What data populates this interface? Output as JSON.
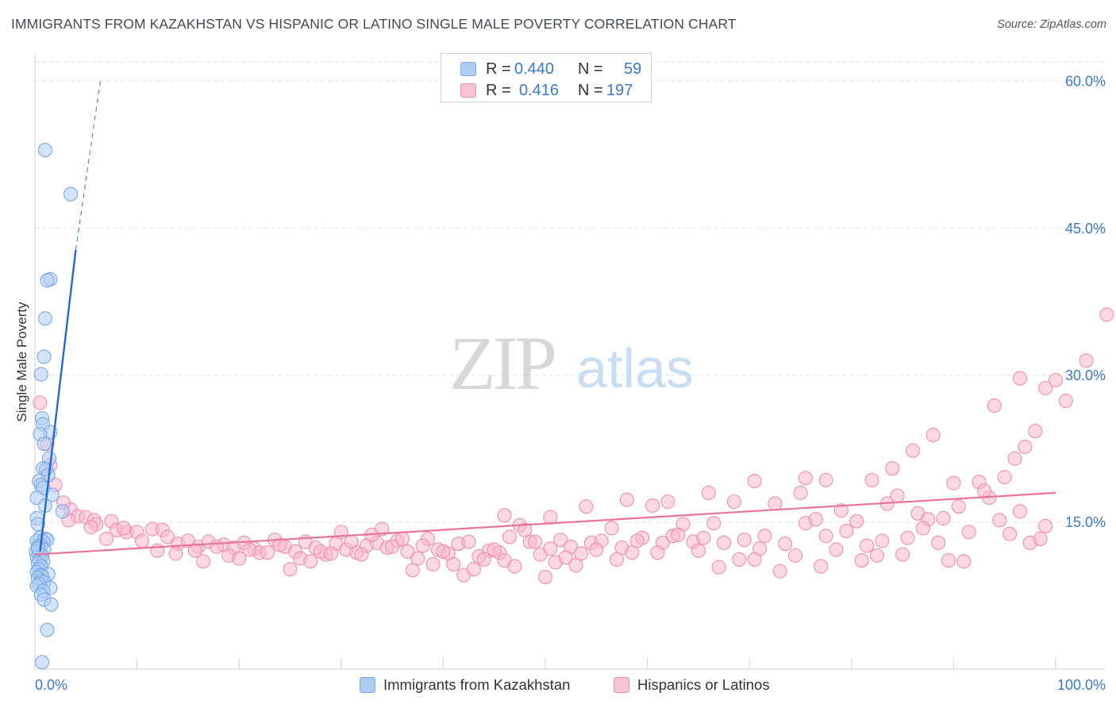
{
  "title": "IMMIGRANTS FROM KAZAKHSTAN VS HISPANIC OR LATINO SINGLE MALE POVERTY CORRELATION CHART",
  "source": "Source: ZipAtlas.com",
  "watermark": {
    "zip": "ZIP",
    "atlas": "atlas"
  },
  "colors": {
    "blue_fill": "#aecdf5",
    "blue_stroke": "#7aa8e0",
    "blue_line": "#2468d0",
    "pink_fill": "#f7b8cc",
    "pink_stroke": "#ee8fb0",
    "pink_line": "#e8739c",
    "axis_label": "#3a78c9",
    "grid": "#e2e2e2"
  },
  "legend_top": {
    "rows": [
      {
        "r_label": "R =",
        "r_value": "0.440",
        "n_label": "N =",
        "n_value": "59"
      },
      {
        "r_label": "R =",
        "r_value": "0.416",
        "n_label": "N =",
        "n_value": "197"
      }
    ]
  },
  "chart_data": {
    "type": "scatter",
    "title": "IMMIGRANTS FROM KAZAKHSTAN VS HISPANIC OR LATINO SINGLE MALE POVERTY CORRELATION CHART",
    "xlabel": "",
    "ylabel": "Single Male Poverty",
    "xlim": [
      0,
      100
    ],
    "ylim": [
      0,
      62
    ],
    "x_tick_labels": [
      "0.0%",
      "100.0%"
    ],
    "y_ticks": [
      15,
      30,
      45,
      60
    ],
    "y_tick_labels": [
      "15.0%",
      "30.0%",
      "45.0%",
      "60.0%"
    ],
    "legend_position": "bottom-center",
    "series": [
      {
        "name": "Immigrants from Kazakhstan",
        "color": "blue",
        "r": 0.44,
        "n": 59,
        "trend": {
          "x0": 0.5,
          "y0": 12.0,
          "x1": 4.0,
          "y1": 42.8,
          "dash_x1": 6.4,
          "dash_y1": 60.0
        },
        "points": [
          [
            1.0,
            53.0
          ],
          [
            3.5,
            48.5
          ],
          [
            1.5,
            39.8
          ],
          [
            1.2,
            39.7
          ],
          [
            1.0,
            35.8
          ],
          [
            0.9,
            31.9
          ],
          [
            0.6,
            30.1
          ],
          [
            0.7,
            25.6
          ],
          [
            0.8,
            25.0
          ],
          [
            1.5,
            24.2
          ],
          [
            0.5,
            24.0
          ],
          [
            0.9,
            23.0
          ],
          [
            1.4,
            21.5
          ],
          [
            0.8,
            20.5
          ],
          [
            1.1,
            20.4
          ],
          [
            1.3,
            19.8
          ],
          [
            0.4,
            19.2
          ],
          [
            0.6,
            18.8
          ],
          [
            0.8,
            18.5
          ],
          [
            1.7,
            17.8
          ],
          [
            0.2,
            17.5
          ],
          [
            1.0,
            16.7
          ],
          [
            2.7,
            16.1
          ],
          [
            0.2,
            15.4
          ],
          [
            0.3,
            14.8
          ],
          [
            0.5,
            13.4
          ],
          [
            1.0,
            13.3
          ],
          [
            1.2,
            13.2
          ],
          [
            0.2,
            13.1
          ],
          [
            0.8,
            13.0
          ],
          [
            0.6,
            12.6
          ],
          [
            0.3,
            12.5
          ],
          [
            0.9,
            12.2
          ],
          [
            0.1,
            12.0
          ],
          [
            0.4,
            11.8
          ],
          [
            0.7,
            11.6
          ],
          [
            0.2,
            11.4
          ],
          [
            0.5,
            11.2
          ],
          [
            0.8,
            11.0
          ],
          [
            0.3,
            10.8
          ],
          [
            0.6,
            10.5
          ],
          [
            0.4,
            10.2
          ],
          [
            0.2,
            9.9
          ],
          [
            0.5,
            9.6
          ],
          [
            1.3,
            9.7
          ],
          [
            0.7,
            9.5
          ],
          [
            0.3,
            9.3
          ],
          [
            0.6,
            9.0
          ],
          [
            0.9,
            8.9
          ],
          [
            0.4,
            8.7
          ],
          [
            0.2,
            8.5
          ],
          [
            1.5,
            8.3
          ],
          [
            0.8,
            8.0
          ],
          [
            0.6,
            7.6
          ],
          [
            0.9,
            7.1
          ],
          [
            1.6,
            6.6
          ],
          [
            1.2,
            4.0
          ],
          [
            0.7,
            0.7
          ],
          [
            0.3,
            12.3
          ]
        ]
      },
      {
        "name": "Hispanics or Latinos",
        "color": "pink",
        "r": 0.416,
        "n": 197,
        "trend": {
          "x0": 0.0,
          "y0": 11.7,
          "x1": 100.0,
          "y1": 18.0
        },
        "points": [
          [
            0.5,
            27.2
          ],
          [
            1.2,
            23.0
          ],
          [
            1.5,
            20.8
          ],
          [
            2.0,
            18.8
          ],
          [
            2.8,
            17.0
          ],
          [
            3.5,
            16.3
          ],
          [
            4.2,
            15.6
          ],
          [
            3.3,
            15.2
          ],
          [
            5.0,
            15.5
          ],
          [
            5.8,
            15.2
          ],
          [
            6.0,
            14.8
          ],
          [
            7.5,
            15.1
          ],
          [
            8.0,
            14.2
          ],
          [
            9.0,
            14.0
          ],
          [
            10.0,
            14.0
          ],
          [
            11.5,
            14.3
          ],
          [
            12.5,
            14.2
          ],
          [
            13.0,
            13.5
          ],
          [
            7.0,
            13.3
          ],
          [
            10.5,
            13.1
          ],
          [
            14.0,
            12.8
          ],
          [
            15.0,
            13.1
          ],
          [
            16.0,
            12.5
          ],
          [
            17.0,
            13.0
          ],
          [
            18.5,
            12.7
          ],
          [
            19.5,
            12.4
          ],
          [
            20.5,
            12.9
          ],
          [
            21.5,
            12.3
          ],
          [
            22.0,
            11.9
          ],
          [
            23.5,
            13.2
          ],
          [
            24.5,
            12.5
          ],
          [
            25.5,
            12.0
          ],
          [
            26.5,
            13.0
          ],
          [
            27.5,
            12.4
          ],
          [
            28.5,
            11.7
          ],
          [
            29.5,
            12.8
          ],
          [
            30.5,
            12.2
          ],
          [
            31.5,
            11.9
          ],
          [
            32.5,
            12.6
          ],
          [
            33.5,
            12.9
          ],
          [
            34.5,
            12.4
          ],
          [
            35.5,
            13.1
          ],
          [
            36.5,
            12.0
          ],
          [
            37.5,
            11.3
          ],
          [
            38.5,
            13.3
          ],
          [
            39.5,
            12.2
          ],
          [
            40.5,
            11.8
          ],
          [
            41.5,
            12.8
          ],
          [
            42.5,
            13.0
          ],
          [
            43.5,
            11.5
          ],
          [
            44.5,
            12.1
          ],
          [
            45.5,
            11.9
          ],
          [
            46.5,
            13.5
          ],
          [
            47.5,
            14.7
          ],
          [
            48.5,
            13.0
          ],
          [
            49.5,
            11.7
          ],
          [
            50.5,
            12.3
          ],
          [
            51.5,
            13.2
          ],
          [
            52.5,
            12.5
          ],
          [
            53.5,
            11.8
          ],
          [
            54.5,
            12.9
          ],
          [
            55.5,
            13.1
          ],
          [
            56.5,
            14.4
          ],
          [
            57.5,
            12.4
          ],
          [
            58.5,
            11.9
          ],
          [
            59.5,
            13.4
          ],
          [
            60.5,
            16.7
          ],
          [
            61.5,
            12.9
          ],
          [
            62.5,
            13.6
          ],
          [
            63.5,
            14.8
          ],
          [
            64.5,
            13.0
          ],
          [
            65.5,
            13.4
          ],
          [
            66.5,
            14.9
          ],
          [
            67.5,
            12.9
          ],
          [
            68.5,
            17.1
          ],
          [
            69.5,
            13.2
          ],
          [
            70.5,
            11.2
          ],
          [
            71.5,
            13.6
          ],
          [
            72.5,
            16.9
          ],
          [
            73.5,
            12.8
          ],
          [
            74.5,
            11.6
          ],
          [
            75.5,
            14.9
          ],
          [
            76.5,
            15.3
          ],
          [
            77.5,
            13.6
          ],
          [
            78.5,
            12.2
          ],
          [
            79.5,
            14.1
          ],
          [
            80.5,
            15.1
          ],
          [
            81.5,
            12.6
          ],
          [
            82.5,
            11.6
          ],
          [
            83.5,
            16.9
          ],
          [
            84.5,
            17.7
          ],
          [
            85.5,
            13.4
          ],
          [
            86.5,
            15.9
          ],
          [
            87.5,
            15.3
          ],
          [
            88.5,
            12.9
          ],
          [
            89.5,
            11.1
          ],
          [
            90.5,
            16.6
          ],
          [
            91.5,
            14.0
          ],
          [
            92.5,
            19.1
          ],
          [
            93.5,
            17.5
          ],
          [
            94.5,
            15.2
          ],
          [
            95.5,
            13.8
          ],
          [
            96.5,
            16.1
          ],
          [
            97.5,
            12.9
          ],
          [
            98.5,
            13.3
          ],
          [
            99.0,
            14.6
          ],
          [
            5.5,
            14.5
          ],
          [
            8.7,
            14.4
          ],
          [
            12.0,
            12.1
          ],
          [
            13.8,
            11.8
          ],
          [
            15.7,
            12.1
          ],
          [
            16.5,
            11.0
          ],
          [
            17.8,
            12.5
          ],
          [
            19.0,
            11.6
          ],
          [
            20.0,
            11.3
          ],
          [
            21.0,
            12.2
          ],
          [
            22.8,
            11.9
          ],
          [
            24.0,
            12.7
          ],
          [
            25.0,
            10.2
          ],
          [
            26.0,
            11.3
          ],
          [
            27.0,
            11.0
          ],
          [
            28.0,
            12.0
          ],
          [
            29.0,
            11.8
          ],
          [
            30.0,
            14.0
          ],
          [
            31.0,
            13.0
          ],
          [
            32.0,
            11.7
          ],
          [
            33.0,
            13.7
          ],
          [
            34.0,
            14.3
          ],
          [
            35.0,
            12.5
          ],
          [
            36.0,
            13.3
          ],
          [
            37.0,
            10.1
          ],
          [
            38.0,
            12.6
          ],
          [
            39.0,
            10.7
          ],
          [
            40.0,
            12.0
          ],
          [
            41.0,
            10.7
          ],
          [
            42.0,
            9.6
          ],
          [
            43.0,
            10.2
          ],
          [
            44.0,
            11.2
          ],
          [
            45.0,
            12.2
          ],
          [
            46.0,
            11.1
          ],
          [
            47.0,
            10.5
          ],
          [
            48.0,
            14.2
          ],
          [
            49.0,
            13.0
          ],
          [
            50.0,
            9.4
          ],
          [
            51.0,
            10.9
          ],
          [
            52.0,
            11.4
          ],
          [
            53.0,
            10.6
          ],
          [
            55.0,
            12.2
          ],
          [
            57.0,
            11.2
          ],
          [
            59.0,
            13.1
          ],
          [
            61.0,
            11.9
          ],
          [
            63.0,
            13.7
          ],
          [
            65.0,
            12.1
          ],
          [
            67.0,
            10.4
          ],
          [
            69.0,
            11.2
          ],
          [
            71.0,
            12.3
          ],
          [
            73.0,
            10.0
          ],
          [
            75.0,
            18.0
          ],
          [
            77.0,
            10.5
          ],
          [
            79.0,
            16.2
          ],
          [
            81.0,
            11.1
          ],
          [
            83.0,
            13.1
          ],
          [
            85.0,
            11.7
          ],
          [
            87.0,
            14.4
          ],
          [
            89.0,
            15.4
          ],
          [
            91.0,
            11.0
          ],
          [
            93.0,
            18.2
          ],
          [
            95.0,
            19.6
          ],
          [
            96.0,
            21.5
          ],
          [
            97.0,
            22.7
          ],
          [
            98.0,
            24.3
          ],
          [
            99.0,
            28.7
          ],
          [
            100.0,
            29.5
          ],
          [
            101.0,
            27.4
          ],
          [
            103.0,
            31.5
          ],
          [
            105.0,
            36.2
          ],
          [
            88.0,
            23.9
          ],
          [
            90.0,
            19.0
          ],
          [
            94.0,
            26.9
          ],
          [
            96.5,
            29.7
          ],
          [
            82.0,
            19.3
          ],
          [
            84.0,
            20.5
          ],
          [
            86.0,
            22.3
          ],
          [
            75.5,
            19.5
          ],
          [
            77.5,
            19.3
          ],
          [
            70.5,
            19.2
          ],
          [
            66.0,
            18.0
          ],
          [
            62.0,
            17.1
          ],
          [
            58.0,
            17.3
          ],
          [
            54.0,
            16.6
          ],
          [
            50.5,
            15.5
          ],
          [
            46.0,
            15.7
          ]
        ]
      }
    ]
  }
}
